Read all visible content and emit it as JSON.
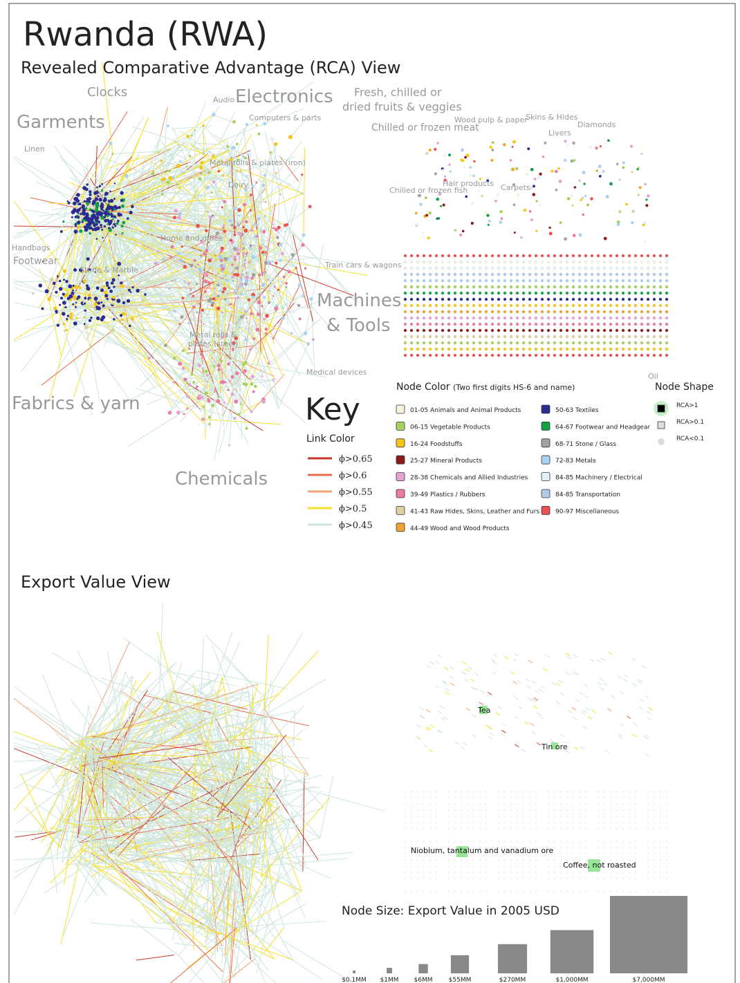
{
  "header": {
    "title": "Rwanda (RWA)",
    "subtitle": "Revealed Comparative Advantage (RCA) View"
  },
  "rca_labels": [
    "Clocks",
    "Audio",
    "Electronics",
    "Fresh, chilled or",
    "dried fruits & veggies",
    "Garments",
    "Computers & parts",
    "Chilled or frozen meat",
    "Wood pulp & paper",
    "Skins & Hides",
    "Livers",
    "Diamonds",
    "Linen",
    "Metal rolls & plates (iron)",
    "Dairy",
    "Hair products",
    "Carpets",
    "Chilled or frozen fish",
    "Handbags",
    "Home and office",
    "Footwear",
    "Stone & Marble",
    "Train cars & wagons",
    "Machines",
    "& Tools",
    "Metal rolls &",
    "plates (steel)",
    "Medical devices",
    "Oil",
    "Fabrics & yarn",
    "Chemicals"
  ],
  "key": {
    "title": "Key",
    "link_color": {
      "title": "Link Color",
      "items": [
        {
          "label": "ϕ>0.65",
          "color": "#c8352b"
        },
        {
          "label": "ϕ>0.6",
          "color": "#ea6a4e"
        },
        {
          "label": "ϕ>0.55",
          "color": "#f2a070"
        },
        {
          "label": "ϕ>0.5",
          "color": "#f5e12a"
        },
        {
          "label": "ϕ>0.45",
          "color": "#cde5da"
        }
      ]
    },
    "node_color": {
      "title": "Node Color",
      "note": "(Two first digits HS-6 and name)",
      "items": [
        {
          "label": "01-05 Animals and Animal Products",
          "color": "#f6f1de"
        },
        {
          "label": "06-15 Vegetable Products",
          "color": "#a9d160"
        },
        {
          "label": "16-24 Foodstuffs",
          "color": "#f5c61a"
        },
        {
          "label": "25-27 Mineral Products",
          "color": "#8b1c1c"
        },
        {
          "label": "28-38 Chemicals and Allied Industries",
          "color": "#e2a2d2"
        },
        {
          "label": "39-49 Plastics / Rubbers",
          "color": "#ea7ca2"
        },
        {
          "label": "41-43 Raw Hides, Skins, Leather and Furs",
          "color": "#dad2a2"
        },
        {
          "label": "44-49 Wood and Wood Products",
          "color": "#f1a232"
        },
        {
          "label": "50-63 Textiles",
          "color": "#2b2b92"
        },
        {
          "label": "64-67 Footwear and Headgear",
          "color": "#12a242"
        },
        {
          "label": "68-71 Stone / Glass",
          "color": "#a2a2a2"
        },
        {
          "label": "72-83 Metals",
          "color": "#aad2f2"
        },
        {
          "label": "84-85 Machinery / Electrical",
          "color": "#e2f1f8"
        },
        {
          "label": "84-85 Transportation",
          "color": "#b2cae9"
        },
        {
          "label": "90-97 Miscellaneous",
          "color": "#e85252"
        }
      ]
    },
    "node_shape": {
      "title": "Node Shape",
      "items": [
        "RCA>1",
        "RCA>0.1",
        "RCA<0.1"
      ]
    }
  },
  "export_view": {
    "title": "Export Value View",
    "annotations": [
      "Tea",
      "Tin ore",
      "Niobium, tantalum and vanadium ore",
      "Coffee, not roasted"
    ]
  },
  "node_size": {
    "title": "Node Size: Export Value in 2005 USD",
    "items": [
      {
        "label": "$0.1MM",
        "value": 0.1
      },
      {
        "label": "$1MM",
        "value": 1
      },
      {
        "label": "$6MM",
        "value": 6
      },
      {
        "label": "$55MM",
        "value": 55
      },
      {
        "label": "$270MM",
        "value": 270
      },
      {
        "label": "$1,000MM",
        "value": 1000
      },
      {
        "label": "$7,000MM",
        "value": 7000
      }
    ]
  }
}
